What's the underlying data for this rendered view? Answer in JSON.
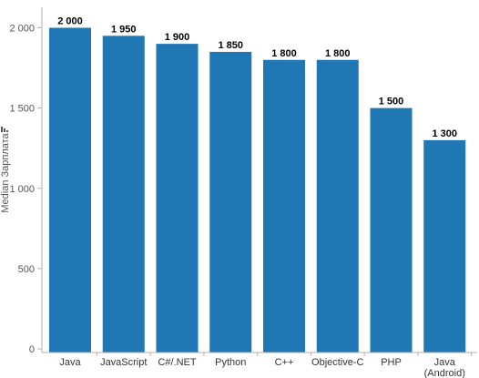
{
  "chart_data": {
    "type": "bar",
    "title": "",
    "xlabel": "",
    "ylabel": "Median Зарплата",
    "categories": [
      "Java",
      "JavaScript",
      "C#/.NET",
      "Python",
      "C++",
      "Objective-C",
      "PHP",
      "Java\n(Android)"
    ],
    "values": [
      2000,
      1950,
      1900,
      1850,
      1800,
      1800,
      1500,
      1300
    ],
    "value_labels": [
      "2 000",
      "1 950",
      "1 900",
      "1 850",
      "1 800",
      "1 800",
      "1 500",
      "1 300"
    ],
    "yticks": [
      0,
      500,
      1000,
      1500,
      2000
    ],
    "ytick_labels": [
      "0",
      "500",
      "1 000",
      "1 500",
      "2 000"
    ],
    "ylim": [
      0,
      2000
    ],
    "grid": false,
    "legend": "none",
    "bar_color": "#1f77b4"
  }
}
